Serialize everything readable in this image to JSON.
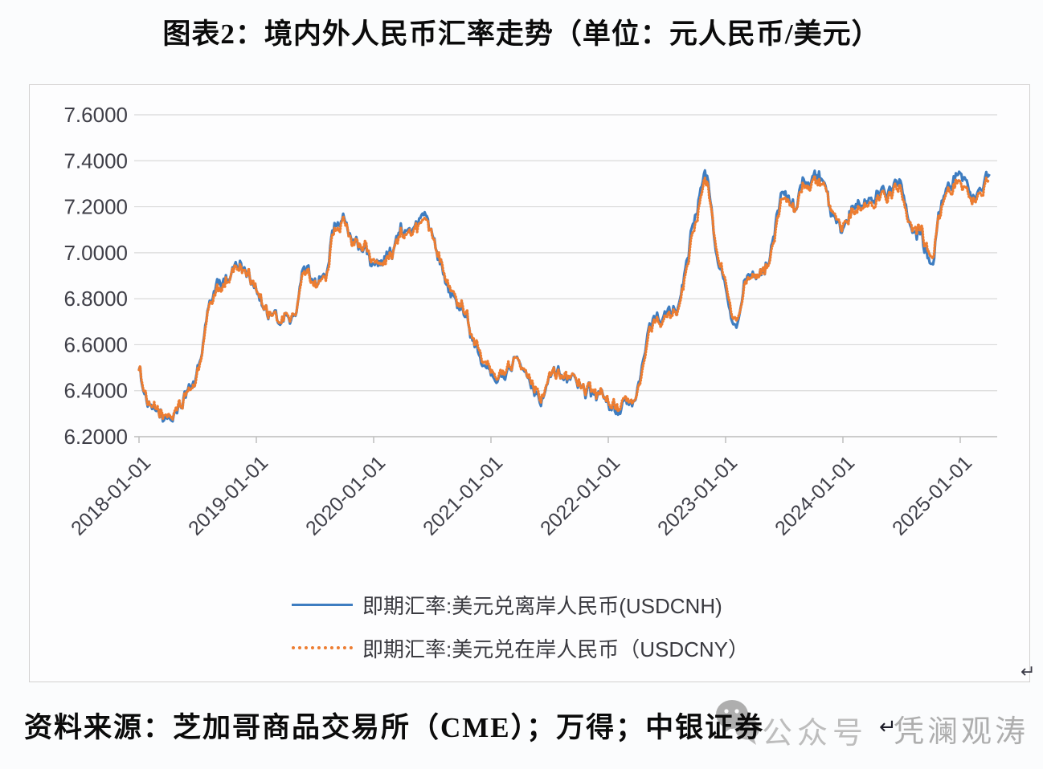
{
  "title": {
    "text": "图表2：境内外人民币汇率走势（单位：元人民币/美元）"
  },
  "source_line": {
    "text": "资料来源：芝加哥商品交易所（CME）；万得；中银证券"
  },
  "watermark": {
    "icon": "wechat-icon",
    "prefix": "公众号",
    "name": "凭澜观涛",
    "color": "#aeaeae"
  },
  "return_marks": {
    "after_source": "↵",
    "chart_corner": "↵"
  },
  "colors": {
    "usdcnh_blue": "#3e7dc1",
    "usdcny_orange": "#ed7d31",
    "gridline": "#d9d9d9",
    "axis_line": "#bfbfbf",
    "tick_label": "#3f3f48",
    "container_border": "#d2d0d0"
  },
  "chart_data": {
    "type": "line",
    "title": "图表2：境内外人民币汇率走势（单位：元人民币/美元）",
    "xlabel": "",
    "ylabel": "",
    "grid": true,
    "legend_position": "bottom",
    "y_axis": {
      "min": 6.2,
      "max": 7.6,
      "tick_step": 0.2,
      "tick_labels": [
        "6.2000",
        "6.4000",
        "6.6000",
        "6.8000",
        "7.0000",
        "7.2000",
        "7.4000",
        "7.6000"
      ]
    },
    "x_axis": {
      "tick_labels": [
        "2018-01-01",
        "2019-01-01",
        "2020-01-01",
        "2021-01-01",
        "2022-01-01",
        "2023-01-01",
        "2024-01-01",
        "2025-01-01"
      ],
      "start_year": 2018.0,
      "data_end_year": 2025.29
    },
    "x_start": 2018.0,
    "x_step_years": 0.0833333,
    "series": [
      {
        "name": "即期汇率:美元兑离岸人民币(USDCNH)",
        "color": "#3e7dc1",
        "style": "solid",
        "values": [
          6.51,
          6.32,
          6.3,
          6.27,
          6.33,
          6.39,
          6.48,
          6.73,
          6.85,
          6.89,
          6.95,
          6.92,
          6.85,
          6.74,
          6.71,
          6.72,
          6.74,
          6.93,
          6.88,
          6.9,
          7.11,
          7.13,
          7.04,
          7.01,
          6.95,
          6.99,
          7.02,
          7.11,
          7.08,
          7.15,
          7.06,
          6.96,
          6.83,
          6.77,
          6.66,
          6.55,
          6.5,
          6.45,
          6.5,
          6.55,
          6.45,
          6.37,
          6.47,
          6.48,
          6.45,
          6.43,
          6.39,
          6.36,
          6.35,
          6.32,
          6.33,
          6.37,
          6.63,
          6.72,
          6.71,
          6.76,
          6.97,
          7.17,
          7.33,
          7.02,
          6.87,
          6.71,
          6.89,
          6.88,
          6.93,
          7.1,
          7.25,
          7.18,
          7.3,
          7.32,
          7.29,
          7.12,
          7.09,
          7.2,
          7.21,
          7.25,
          7.26,
          7.27,
          7.3,
          7.13,
          7.07,
          6.97,
          7.2,
          7.3,
          7.34,
          7.27,
          7.24,
          7.33
        ]
      },
      {
        "name": "即期汇率:美元兑在岸人民币（USDCNY）",
        "color": "#ed7d31",
        "style": "dotted",
        "values": [
          6.51,
          6.33,
          6.31,
          6.28,
          6.33,
          6.39,
          6.47,
          6.72,
          6.83,
          6.88,
          6.94,
          6.92,
          6.86,
          6.74,
          6.71,
          6.72,
          6.74,
          6.91,
          6.87,
          6.89,
          7.09,
          7.12,
          7.04,
          7.02,
          6.96,
          6.98,
          7.01,
          7.09,
          7.07,
          7.13,
          7.06,
          6.97,
          6.84,
          6.78,
          6.67,
          6.57,
          6.51,
          6.46,
          6.51,
          6.55,
          6.46,
          6.38,
          6.47,
          6.48,
          6.46,
          6.44,
          6.4,
          6.37,
          6.36,
          6.33,
          6.34,
          6.37,
          6.61,
          6.71,
          6.7,
          6.75,
          6.95,
          7.14,
          7.3,
          7.03,
          6.89,
          6.73,
          6.88,
          6.88,
          6.92,
          7.08,
          7.23,
          7.17,
          7.28,
          7.3,
          7.28,
          7.13,
          7.1,
          7.18,
          7.2,
          7.23,
          7.24,
          7.25,
          7.27,
          7.14,
          7.09,
          7.0,
          7.18,
          7.28,
          7.3,
          7.25,
          7.23,
          7.3
        ]
      }
    ]
  }
}
